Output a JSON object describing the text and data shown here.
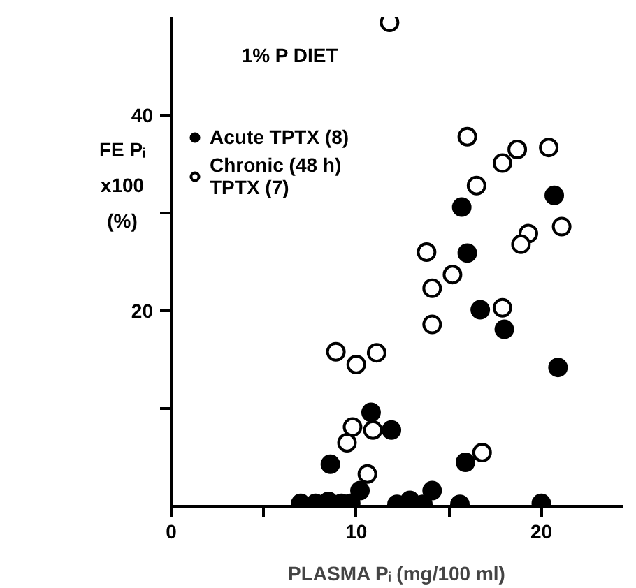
{
  "chart_data": {
    "type": "scatter",
    "xlabel": "PLASMA Pᵢ (mg/100 ml)",
    "ylabel": "FE Pᵢ\nx100\n(%)",
    "annotations": [
      "1% P DIET"
    ],
    "xlim": [
      0,
      24.4
    ],
    "ylim": [
      0,
      50
    ],
    "xticks": [
      0,
      {
        "value": 5,
        "label": null
      },
      10,
      {
        "value": 15,
        "label": null
      },
      20
    ],
    "yticks": [
      {
        "value": 10,
        "label": null
      },
      20,
      {
        "value": 30,
        "label": null
      },
      40
    ],
    "grid": false,
    "legend": "top left",
    "marker": "circle",
    "series": [
      {
        "name": "Acute TPTX (8)",
        "color": "#000000",
        "x": [
          15.7,
          20.7,
          16.0,
          16.7,
          18.0,
          20.9,
          10.8,
          11.9,
          8.6,
          15.9,
          14.1,
          10.2,
          7.0,
          7.8,
          8.5,
          9.2,
          9.7,
          12.2,
          12.9,
          13.6,
          15.6,
          20.0
        ],
        "values": [
          30.6,
          31.8,
          25.9,
          20.1,
          18.1,
          14.2,
          9.6,
          7.8,
          4.3,
          4.5,
          1.6,
          1.6,
          0.3,
          0.3,
          0.5,
          0.3,
          0.3,
          0.2,
          0.6,
          0.2,
          0.2,
          0.3
        ]
      },
      {
        "name": "Chronic (48 h)\nTPTX (7)",
        "color": "#ffffff",
        "x": [
          11.8,
          16.0,
          18.7,
          20.4,
          17.9,
          16.5,
          21.1,
          19.3,
          18.9,
          13.8,
          14.1,
          15.2,
          14.1,
          17.9,
          8.9,
          10.0,
          11.1,
          9.8,
          10.9,
          9.5,
          10.6,
          16.8
        ],
        "values": [
          49.5,
          37.8,
          36.5,
          36.7,
          35.1,
          32.8,
          28.6,
          27.9,
          26.8,
          26.0,
          22.3,
          23.7,
          18.6,
          20.3,
          15.8,
          14.5,
          15.7,
          8.1,
          7.8,
          6.5,
          3.3,
          5.5
        ]
      }
    ]
  }
}
